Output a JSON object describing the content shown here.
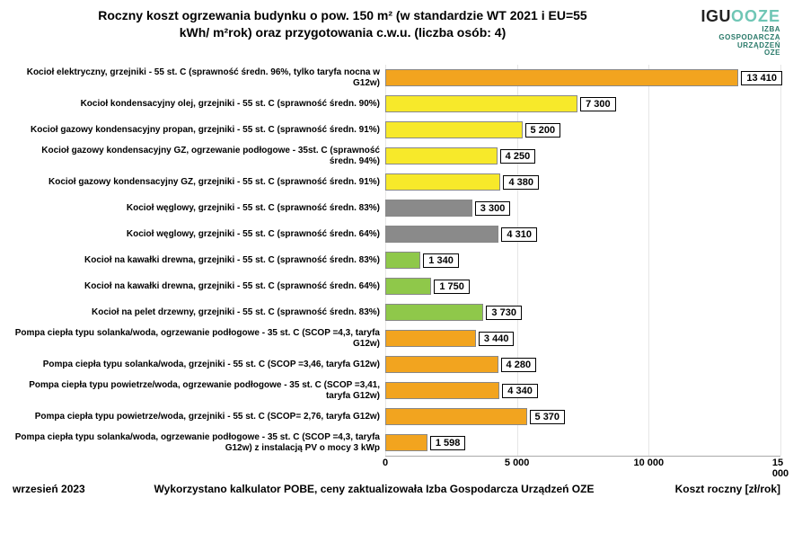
{
  "title_line1": "Roczny koszt ogrzewania budynku  o pow. 150  m² (w standardzie WT 2021 i EU=55",
  "title_line2": "kWh/ m²rok) oraz przygotowania c.w.u. (liczba osób: 4)",
  "logo": {
    "igu": "IGU",
    "ooze": "OOZE",
    "sub1": "IZBA",
    "sub2": "GOSPODARCZA",
    "sub3": "URZĄDZEŃ",
    "sub4": "OZE"
  },
  "chart": {
    "type": "bar-horizontal",
    "xmax": 15000,
    "xticks": [
      0,
      5000,
      10000,
      15000
    ],
    "xtick_labels": [
      "0",
      "5 000",
      "10 000",
      "15 000"
    ],
    "bar_border": "#888888",
    "grid_color": "#e6e6e6",
    "rows": [
      {
        "label": "Kocioł  elektryczny,  grzejniki - 55 st. C  (sprawność średn. 96%, tylko taryfa nocna w G12w)",
        "value": 13410,
        "value_label": "13 410",
        "color": "#f2a41f"
      },
      {
        "label": "Kocioł  kondensacyjny olej,  grzejniki - 55 st. C   (sprawność średn. 90%)",
        "value": 7300,
        "value_label": "7 300",
        "color": "#f7e92a"
      },
      {
        "label": "Kocioł gazowy kondensacyjny propan, grzejniki - 55 st. C  (sprawność średn. 91%)",
        "value": 5200,
        "value_label": "5 200",
        "color": "#f7e92a"
      },
      {
        "label": "Kocioł gazowy kondensacyjny GZ, ogrzewanie podłogowe - 35st. C   (sprawność średn. 94%)",
        "value": 4250,
        "value_label": "4 250",
        "color": "#f7e92a"
      },
      {
        "label": "Kocioł gazowy kondensacyjny GZ, grzejniki - 55 st. C   (sprawność średn. 91%)",
        "value": 4380,
        "value_label": "4 380",
        "color": "#f7e92a"
      },
      {
        "label": "Kocioł węglowy,  grzejniki - 55 st. C  (sprawność średn. 83%)",
        "value": 3300,
        "value_label": "3 300",
        "color": "#8a8a8a"
      },
      {
        "label": "Kocioł węglowy,  grzejniki - 55 st. C  (sprawność średn. 64%)",
        "value": 4310,
        "value_label": "4 310",
        "color": "#8a8a8a"
      },
      {
        "label": "Kocioł na kawałki drewna, grzejniki - 55 st. C  (sprawność średn. 83%)",
        "value": 1340,
        "value_label": "1 340",
        "color": "#8fc84a"
      },
      {
        "label": "Kocioł na kawałki drewna, grzejniki - 55 st. C  (sprawność średn. 64%)",
        "value": 1750,
        "value_label": "1 750",
        "color": "#8fc84a"
      },
      {
        "label": "Kocioł na pelet drzewny, grzejniki - 55 st. C  (sprawność średn. 83%)",
        "value": 3730,
        "value_label": "3 730",
        "color": "#8fc84a"
      },
      {
        "label": "Pompa ciepła typu solanka/woda, ogrzewanie podłogowe - 35 st. C  (SCOP =4,3, taryfa G12w)",
        "value": 3440,
        "value_label": "3 440",
        "color": "#f2a41f"
      },
      {
        "label": "Pompa ciepła typu solanka/woda, grzejniki - 55 st. C  (SCOP =3,46, taryfa G12w)",
        "value": 4280,
        "value_label": "4 280",
        "color": "#f2a41f"
      },
      {
        "label": "Pompa ciepła typu powietrze/woda, ogrzewanie podłogowe - 35 st. C (SCOP =3,41, taryfa G12w)",
        "value": 4340,
        "value_label": "4 340",
        "color": "#f2a41f"
      },
      {
        "label": "Pompa ciepła typu powietrze/woda, grzejniki - 55 st. C (SCOP= 2,76, taryfa G12w)",
        "value": 5370,
        "value_label": "5 370",
        "color": "#f2a41f"
      },
      {
        "label": "Pompa ciepła typu solanka/woda, ogrzewanie podłogowe - 35 st. C  (SCOP =4,3, taryfa G12w) z instalacją PV o mocy 3 kWp",
        "value": 1598,
        "value_label": "1 598",
        "color": "#f2a41f"
      }
    ]
  },
  "footer": {
    "date": "wrzesień 2023",
    "source": "Wykorzystano kalkulator POBE, ceny zaktualizowała Izba Gospodarcza Urządzeń OZE",
    "xlabel": "Koszt roczny  [zł/rok]"
  }
}
